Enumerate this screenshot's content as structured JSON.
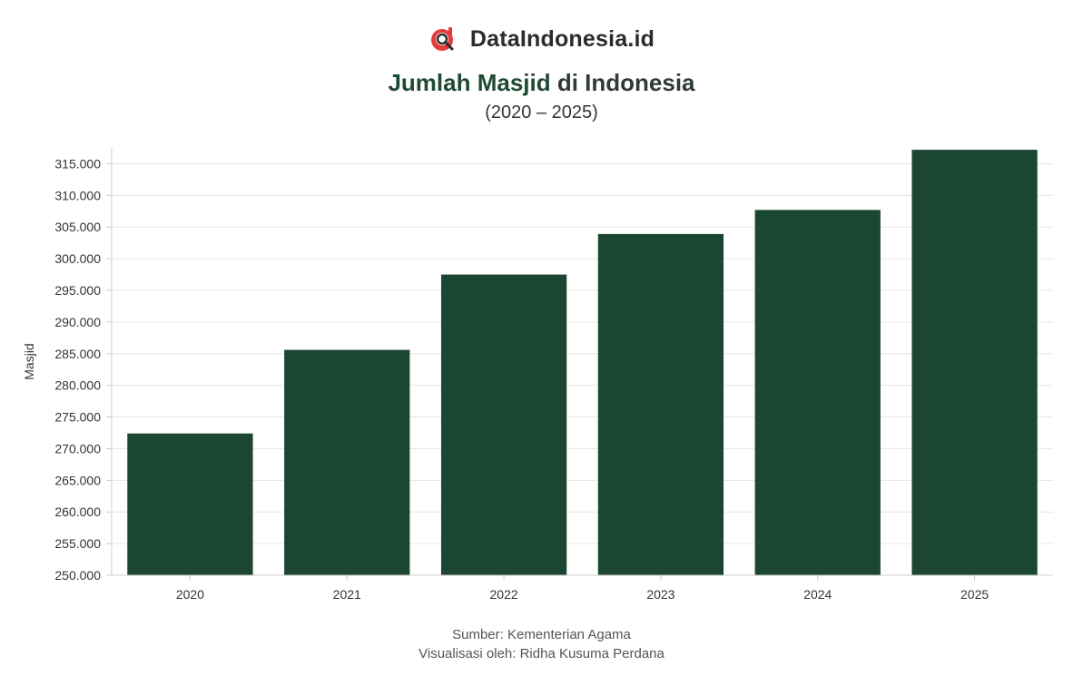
{
  "brand": {
    "name": "DataIndonesia.id",
    "logo_icon": "dataindonesia-logo-icon",
    "logo_colors": {
      "circle": "#e63b3b",
      "magnifier": "#2b2b2b"
    }
  },
  "header": {
    "title_accent": "Jumlah Masjid",
    "title_rest": " di Indonesia",
    "subtitle": "(2020 – 2025)"
  },
  "chart_data": {
    "type": "bar",
    "categories": [
      "2020",
      "2021",
      "2022",
      "2023",
      "2024",
      "2025"
    ],
    "values": [
      272400,
      285600,
      297500,
      303900,
      307700,
      317200
    ],
    "ylabel": "Masjid",
    "xlabel": "",
    "ylim": [
      250000,
      317500
    ],
    "yticks": [
      250000,
      255000,
      260000,
      265000,
      270000,
      275000,
      280000,
      285000,
      290000,
      295000,
      300000,
      305000,
      310000,
      315000
    ],
    "ytick_labels": [
      "250.000",
      "255.000",
      "260.000",
      "265.000",
      "270.000",
      "275.000",
      "280.000",
      "285.000",
      "290.000",
      "295.000",
      "300.000",
      "305.000",
      "310.000",
      "315.000"
    ],
    "grid": true,
    "bar_color": "#1b4631"
  },
  "footer": {
    "source": "Sumber: Kementerian Agama",
    "credit": "Visualisasi oleh: Ridha Kusuma Perdana"
  }
}
